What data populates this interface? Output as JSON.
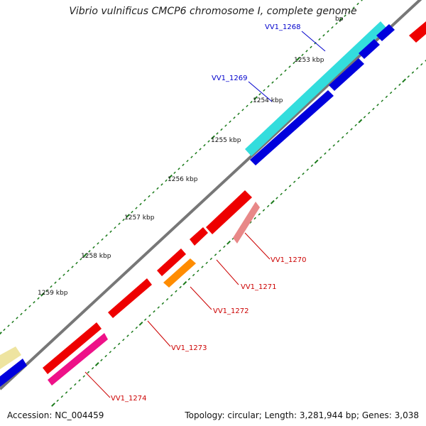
{
  "title": "Vibrio vulnificus CMCP6 chromosome I, complete genome",
  "footer": {
    "accession": "Accession: NC_004459",
    "stats": "Topology: circular; Length: 3,281,944 bp; Genes: 3,038"
  },
  "kbp_ticks": [
    "1253 kbp",
    "1254 kbp",
    "1255 kbp",
    "1256 kbp",
    "1257 kbp",
    "1258 kbp",
    "1259 kbp"
  ],
  "colors": {
    "backbone": "#777777",
    "tick": "#1a7a1a",
    "red": "#ee0000",
    "salmon": "#e88888",
    "orange": "#ff8c00",
    "pink": "#ee1188",
    "cyan": "#33dddd",
    "blue": "#0000dd",
    "beige": "#eee4a0",
    "forward_label": "#0000cc",
    "reverse_label": "#cc0000"
  },
  "gene_labels": [
    {
      "text": "VV1_1268",
      "color": "#0000cc"
    },
    {
      "text": "VV1_1269",
      "color": "#0000cc"
    },
    {
      "text": "VV1_1270",
      "color": "#cc0000"
    },
    {
      "text": "VV1_1271",
      "color": "#cc0000"
    },
    {
      "text": "VV1_1272",
      "color": "#cc0000"
    },
    {
      "text": "VV1_1273",
      "color": "#cc0000"
    },
    {
      "text": "VV1_1274",
      "color": "#cc0000"
    }
  ]
}
